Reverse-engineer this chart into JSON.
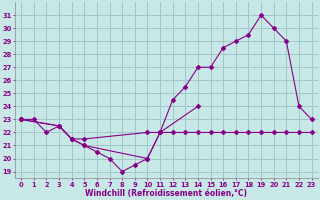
{
  "background_color": "#c8e8e8",
  "grid_color": "#a0c8c8",
  "line_color": "#880088",
  "xlim": [
    -0.5,
    23.5
  ],
  "ylim": [
    18.5,
    32.0
  ],
  "yticks": [
    19,
    20,
    21,
    22,
    23,
    24,
    25,
    26,
    27,
    28,
    29,
    30,
    31
  ],
  "xticks": [
    0,
    1,
    2,
    3,
    4,
    5,
    6,
    7,
    8,
    9,
    10,
    11,
    12,
    13,
    14,
    15,
    16,
    17,
    18,
    19,
    20,
    21,
    22,
    23
  ],
  "xlabel": "Windchill (Refroidissement éolien,°C)",
  "series": [
    {
      "x": [
        0,
        1,
        2,
        3,
        4,
        5,
        10,
        11,
        12,
        13,
        14,
        15,
        16,
        17,
        18,
        19,
        20,
        21,
        22,
        23
      ],
      "y": [
        23,
        23,
        22,
        22.5,
        21.5,
        21.5,
        22,
        22,
        22,
        22,
        22,
        22,
        22,
        22,
        22,
        22,
        22,
        22,
        22,
        22
      ]
    },
    {
      "x": [
        0,
        3,
        4,
        5,
        6,
        7,
        8,
        9,
        10,
        11,
        14
      ],
      "y": [
        23,
        22.5,
        21.5,
        21,
        20.5,
        20,
        19,
        19.5,
        20,
        22,
        24
      ]
    },
    {
      "x": [
        0,
        3,
        4,
        5,
        10,
        11,
        12,
        13,
        14,
        15,
        16,
        17,
        18,
        19,
        20,
        21,
        22,
        23
      ],
      "y": [
        23,
        22.5,
        21.5,
        21,
        20,
        22,
        24.5,
        25.5,
        27,
        27,
        28.5,
        29,
        29.5,
        31,
        30,
        29,
        24,
        23
      ]
    }
  ]
}
